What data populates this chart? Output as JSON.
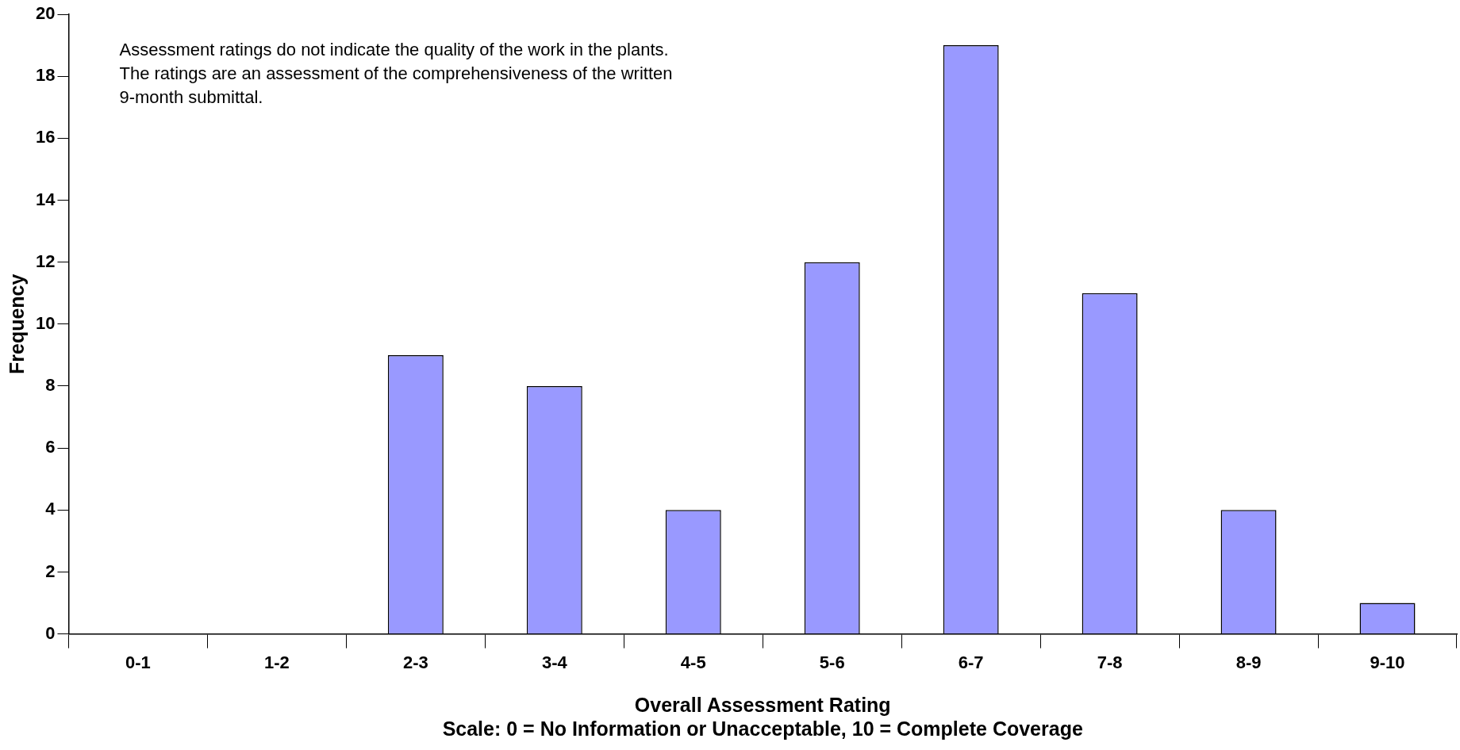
{
  "chart_data": {
    "type": "bar",
    "categories": [
      "0-1",
      "1-2",
      "2-3",
      "3-4",
      "4-5",
      "5-6",
      "6-7",
      "7-8",
      "8-9",
      "9-10"
    ],
    "values": [
      0,
      0,
      9,
      8,
      4,
      12,
      19,
      11,
      4,
      1
    ],
    "color": "#9999ff",
    "xlabel": "Overall Assessment Rating",
    "ylabel": "Frequency",
    "ylim": [
      0,
      20
    ],
    "yticks": [
      0,
      2,
      4,
      6,
      8,
      10,
      12,
      14,
      16,
      18,
      20
    ],
    "legend": false,
    "annotations": [
      "Assessment ratings do not indicate the quality of the work in the plants.  The ratings are an assessment of the comprehensiveness of the written 9-month submittal.",
      "Scale: 0 = No Information or Unacceptable, 10 = Complete Coverage"
    ]
  }
}
